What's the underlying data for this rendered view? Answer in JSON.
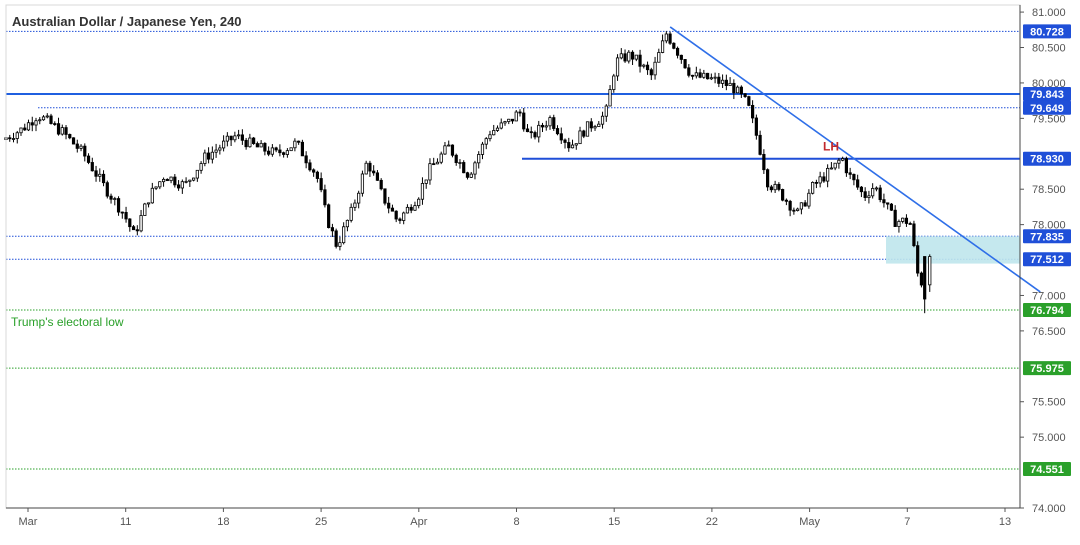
{
  "chart_data": {
    "type": "candlestick",
    "title": "Australian Dollar / Japanese Yen, 240",
    "ylim": [
      74.0,
      81.1
    ],
    "y_ticks": [
      "81.000",
      "80.500",
      "80.000",
      "79.500",
      "78.500",
      "78.000",
      "77.000",
      "76.500",
      "75.500",
      "75.000",
      "74.000"
    ],
    "x_ticks": [
      "Mar",
      "11",
      "18",
      "25",
      "Apr",
      "8",
      "15",
      "22",
      "May",
      "7",
      "13"
    ],
    "levels": [
      {
        "label": "80.728",
        "value": 80.728,
        "style": "dotted",
        "color": "#1f4fd8",
        "badge": "#1f4fd8"
      },
      {
        "label": "79.843",
        "value": 79.843,
        "style": "solid",
        "color": "#1f5fe0",
        "badge": "#1f4fd8"
      },
      {
        "label": "79.649",
        "value": 79.649,
        "style": "dotted",
        "color": "#1f4fd8",
        "badge": "#1f4fd8"
      },
      {
        "label": "78.930",
        "value": 78.93,
        "style": "solid",
        "color": "#1f4fd8",
        "badge": "#1f4fd8"
      },
      {
        "label": "77.835",
        "value": 77.835,
        "style": "dotted",
        "color": "#1f4fd8",
        "badge": "#1f4fd8"
      },
      {
        "label": "77.512",
        "value": 77.512,
        "style": "dotted",
        "color": "#1f4fd8",
        "badge": "#1f4fd8"
      },
      {
        "label": "76.794",
        "value": 76.794,
        "style": "dotted",
        "color": "#2aa02a",
        "badge": "#2aa02a"
      },
      {
        "label": "75.975",
        "value": 75.975,
        "style": "dotted",
        "color": "#2aa02a",
        "badge": "#2aa02a"
      },
      {
        "label": "74.551",
        "value": 74.551,
        "style": "dotted",
        "color": "#2aa02a",
        "badge": "#2aa02a"
      }
    ],
    "annotations": [
      {
        "text": "Trump's electoral low",
        "color": "#2aa02a"
      },
      {
        "text": "LH",
        "color": "#c0282d"
      }
    ],
    "zone": {
      "from": 77.45,
      "to": 77.835,
      "color": "#bfe6ec"
    },
    "trendline": {
      "start": {
        "t": 0.655,
        "price": 80.79
      },
      "end": {
        "t": 1.02,
        "price": 77.05
      }
    },
    "price_path": [
      [
        0.0,
        79.2
      ],
      [
        0.02,
        79.35
      ],
      [
        0.035,
        79.55
      ],
      [
        0.06,
        79.3
      ],
      [
        0.08,
        79.0
      ],
      [
        0.1,
        78.55
      ],
      [
        0.12,
        78.15
      ],
      [
        0.13,
        77.85
      ],
      [
        0.145,
        78.4
      ],
      [
        0.16,
        78.7
      ],
      [
        0.18,
        78.55
      ],
      [
        0.2,
        78.95
      ],
      [
        0.23,
        79.25
      ],
      [
        0.25,
        79.1
      ],
      [
        0.27,
        79.0
      ],
      [
        0.29,
        79.15
      ],
      [
        0.31,
        78.7
      ],
      [
        0.32,
        78.1
      ],
      [
        0.33,
        77.7
      ],
      [
        0.345,
        78.2
      ],
      [
        0.36,
        78.9
      ],
      [
        0.375,
        78.4
      ],
      [
        0.39,
        78.05
      ],
      [
        0.41,
        78.4
      ],
      [
        0.42,
        78.75
      ],
      [
        0.44,
        79.1
      ],
      [
        0.46,
        78.7
      ],
      [
        0.48,
        79.3
      ],
      [
        0.5,
        79.45
      ],
      [
        0.51,
        79.6
      ],
      [
        0.52,
        79.2
      ],
      [
        0.54,
        79.5
      ],
      [
        0.56,
        79.1
      ],
      [
        0.575,
        79.35
      ],
      [
        0.595,
        79.55
      ],
      [
        0.605,
        80.3
      ],
      [
        0.62,
        80.4
      ],
      [
        0.64,
        80.1
      ],
      [
        0.655,
        80.7
      ],
      [
        0.67,
        80.35
      ],
      [
        0.68,
        80.1
      ],
      [
        0.7,
        80.05
      ],
      [
        0.72,
        79.95
      ],
      [
        0.735,
        79.7
      ],
      [
        0.745,
        79.2
      ],
      [
        0.755,
        78.6
      ],
      [
        0.77,
        78.4
      ],
      [
        0.785,
        78.15
      ],
      [
        0.8,
        78.55
      ],
      [
        0.82,
        78.8
      ],
      [
        0.828,
        78.95
      ],
      [
        0.835,
        78.7
      ],
      [
        0.85,
        78.4
      ],
      [
        0.86,
        78.55
      ],
      [
        0.87,
        78.3
      ],
      [
        0.88,
        78.05
      ],
      [
        0.895,
        78.05
      ],
      [
        0.905,
        77.1
      ],
      [
        0.91,
        77.4
      ]
    ]
  }
}
